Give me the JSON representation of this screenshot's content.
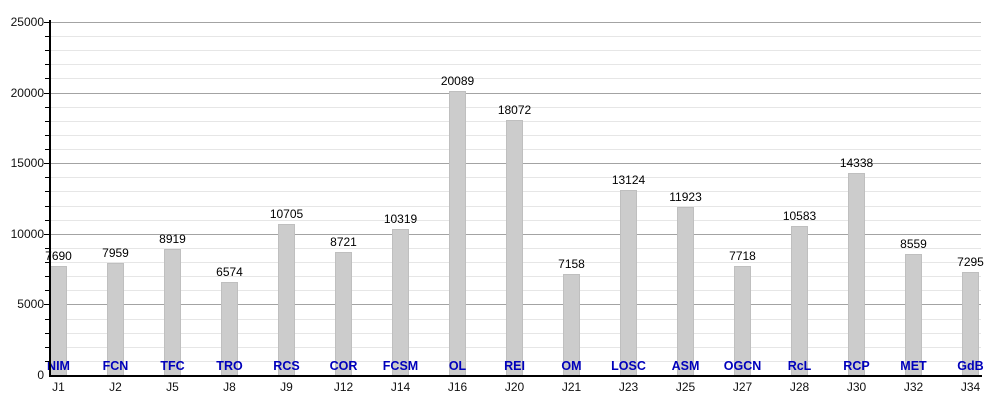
{
  "chart_data": {
    "type": "bar",
    "title": "",
    "xlabel": "",
    "ylabel": "",
    "categories": [
      "J1",
      "J2",
      "J5",
      "J8",
      "J9",
      "J12",
      "J14",
      "J16",
      "J20",
      "J21",
      "J23",
      "J25",
      "J27",
      "J28",
      "J30",
      "J32",
      "J34"
    ],
    "bar_labels": [
      "NIM",
      "FCN",
      "TFC",
      "TRO",
      "RCS",
      "COR",
      "FCSM",
      "OL",
      "REI",
      "OM",
      "LOSC",
      "ASM",
      "OGCN",
      "RcL",
      "RCP",
      "MET",
      "GdB"
    ],
    "values": [
      7690,
      7959,
      8919,
      6574,
      10705,
      8721,
      10319,
      20089,
      18072,
      7158,
      13124,
      11923,
      7718,
      10583,
      14338,
      8559,
      7295
    ],
    "ylim": [
      0,
      25000
    ],
    "y_major_step": 5000,
    "y_minor_step": 1000,
    "y_tick_labels": [
      "0",
      "5000",
      "10000",
      "15000",
      "20000",
      "25000"
    ],
    "grid": "horizontal major+minor",
    "legend": "none",
    "colors": {
      "bar_fill": "#cccccc",
      "bar_border": "#bfbfbf",
      "major_grid": "#a3a3a3",
      "minor_grid": "#e6e6e6",
      "axis": "#000000",
      "bar_label_text": "#0000bb",
      "value_text": "#000000",
      "tick_text": "#111111"
    }
  }
}
